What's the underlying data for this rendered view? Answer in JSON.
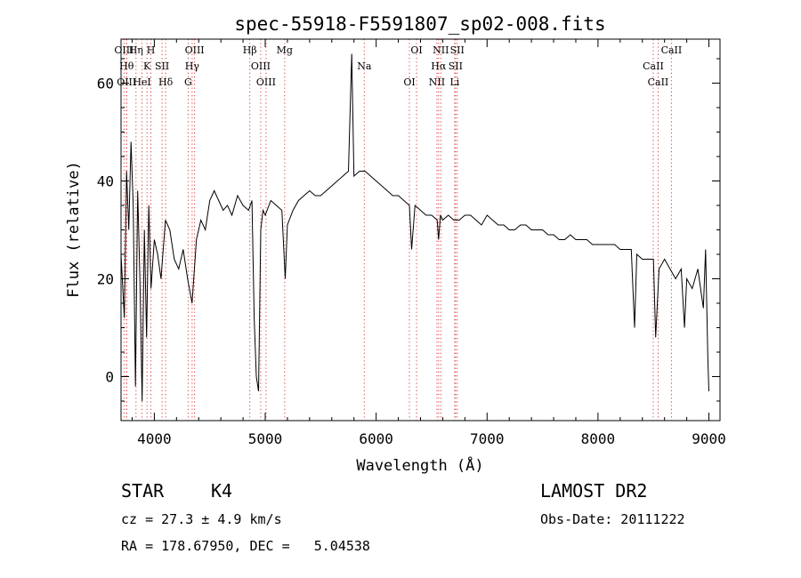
{
  "chart_data": {
    "type": "line",
    "title": "spec-55918-F5591807_sp02-008.fits",
    "xlabel": "Wavelength (Å)",
    "ylabel": "Flux (relative)",
    "xlim": [
      3700,
      9100
    ],
    "ylim": [
      -9,
      69
    ],
    "xticks": [
      4000,
      5000,
      6000,
      7000,
      8000,
      9000
    ],
    "yticks": [
      0,
      20,
      40,
      60
    ],
    "grid": false,
    "series": [
      {
        "x": [
          3700,
          3730,
          3750,
          3770,
          3790,
          3810,
          3830,
          3850,
          3870,
          3890,
          3910,
          3930,
          3950,
          3970,
          4000,
          4030,
          4060,
          4100,
          4140,
          4180,
          4220,
          4260,
          4300,
          4340,
          4380,
          4420,
          4460,
          4500,
          4540,
          4580,
          4620,
          4660,
          4700,
          4750,
          4800,
          4850,
          4880,
          4900,
          4920,
          4940,
          4960,
          4980,
          5000,
          5050,
          5100,
          5150,
          5180,
          5200,
          5250,
          5300,
          5350,
          5400,
          5450,
          5500,
          5550,
          5600,
          5650,
          5700,
          5750,
          5780,
          5800,
          5850,
          5900,
          5950,
          6000,
          6050,
          6100,
          6150,
          6200,
          6250,
          6300,
          6320,
          6350,
          6400,
          6450,
          6500,
          6550,
          6563,
          6580,
          6600,
          6650,
          6700,
          6750,
          6800,
          6850,
          6900,
          6950,
          7000,
          7050,
          7100,
          7150,
          7200,
          7250,
          7300,
          7350,
          7400,
          7450,
          7500,
          7550,
          7600,
          7650,
          7700,
          7750,
          7800,
          7850,
          7900,
          7950,
          8000,
          8050,
          8100,
          8150,
          8200,
          8250,
          8300,
          8330,
          8350,
          8400,
          8450,
          8500,
          8520,
          8550,
          8600,
          8650,
          8700,
          8750,
          8780,
          8800,
          8850,
          8900,
          8950,
          8970,
          8990,
          9000
        ],
        "y": [
          25,
          12,
          42,
          30,
          48,
          35,
          -2,
          38,
          20,
          -5,
          30,
          8,
          35,
          18,
          28,
          25,
          20,
          32,
          30,
          24,
          22,
          26,
          20,
          15,
          28,
          32,
          30,
          36,
          38,
          36,
          34,
          35,
          33,
          37,
          35,
          34,
          36,
          12,
          0,
          -3,
          30,
          34,
          33,
          36,
          35,
          34,
          20,
          31,
          34,
          36,
          37,
          38,
          37,
          37,
          38,
          39,
          40,
          41,
          42,
          66,
          41,
          42,
          42,
          41,
          40,
          39,
          38,
          37,
          37,
          36,
          35,
          26,
          35,
          34,
          33,
          33,
          32,
          28,
          33,
          32,
          33,
          32,
          32,
          33,
          33,
          32,
          31,
          33,
          32,
          31,
          31,
          30,
          30,
          31,
          31,
          30,
          30,
          30,
          29,
          29,
          28,
          28,
          29,
          28,
          28,
          28,
          27,
          27,
          27,
          27,
          27,
          26,
          26,
          26,
          10,
          25,
          24,
          24,
          24,
          8,
          22,
          24,
          22,
          20,
          22,
          10,
          20,
          18,
          22,
          14,
          26,
          4,
          -3
        ]
      }
    ],
    "annotations": [
      {
        "label": "OIII",
        "x": 3727
      },
      {
        "label": "Hθ",
        "x": 3750
      },
      {
        "label": "OIII",
        "x": 3750
      },
      {
        "label": "Hη",
        "x": 3835
      },
      {
        "label": "K",
        "x": 3934
      },
      {
        "label": "HeI",
        "x": 3889
      },
      {
        "label": "H",
        "x": 3969
      },
      {
        "label": "SII",
        "x": 4070
      },
      {
        "label": "Hδ",
        "x": 4102
      },
      {
        "label": "OIII",
        "x": 4363
      },
      {
        "label": "Hγ",
        "x": 4341
      },
      {
        "label": "G",
        "x": 4305
      },
      {
        "label": "Hβ",
        "x": 4861
      },
      {
        "label": "OIII",
        "x": 4959
      },
      {
        "label": "OIII",
        "x": 5007
      },
      {
        "label": "Mg",
        "x": 5175
      },
      {
        "label": "Na",
        "x": 5893
      },
      {
        "label": "OI",
        "x": 6300
      },
      {
        "label": "OI",
        "x": 6364
      },
      {
        "label": "Hα",
        "x": 6563
      },
      {
        "label": "NII",
        "x": 6548
      },
      {
        "label": "NII",
        "x": 6583
      },
      {
        "label": "SII",
        "x": 6716
      },
      {
        "label": "Li",
        "x": 6708
      },
      {
        "label": "SII",
        "x": 6731
      },
      {
        "label": "CaII",
        "x": 8498
      },
      {
        "label": "CaII",
        "x": 8542
      },
      {
        "label": "CaII",
        "x": 8662
      }
    ]
  },
  "info": {
    "class_label": "STAR",
    "subclass": "K4",
    "survey": "LAMOST DR2",
    "cz": "cz = 27.3 ± 4.9 km/s",
    "obs_date": "Obs-Date: 20111222",
    "coords": "RA = 178.67950, DEC =   5.04538"
  },
  "colors": {
    "line": "#000000",
    "marker": "#d63a3a",
    "axis": "#000000"
  }
}
